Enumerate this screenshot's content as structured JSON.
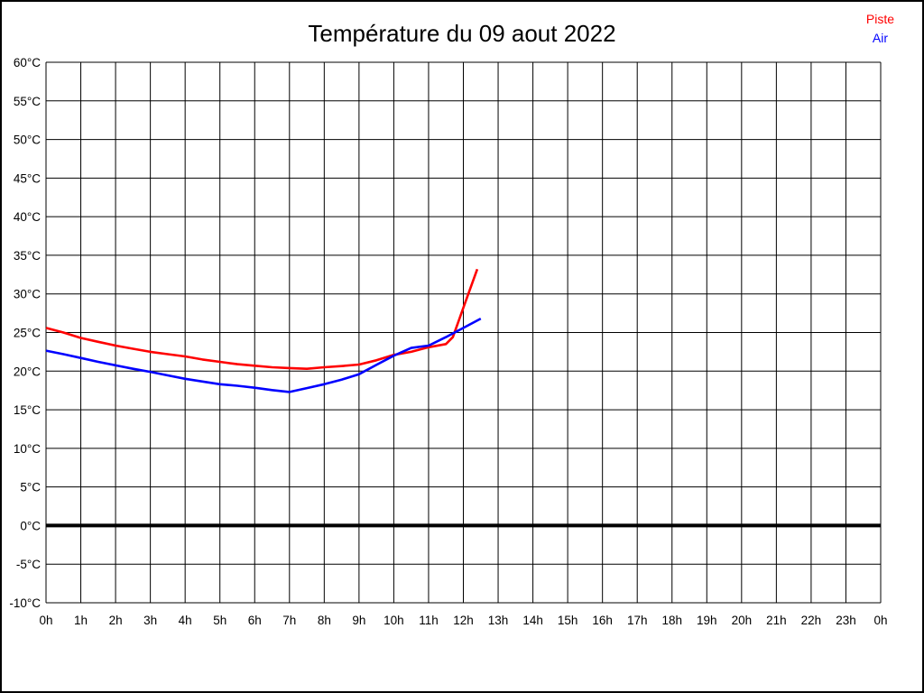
{
  "title": "Température du 09 aout 2022",
  "legend": [
    {
      "label": "Piste",
      "color": "#ff0000"
    },
    {
      "label": "Air",
      "color": "#0000ff"
    }
  ],
  "colors": {
    "background": "#ffffff",
    "grid": "#000000",
    "zero_line": "#000000",
    "border": "#000000",
    "piste": "#ff0000",
    "air": "#0000ff"
  },
  "chart_data": {
    "type": "line",
    "title": "Température du 09 aout 2022",
    "xlabel": "",
    "ylabel": "",
    "grid": true,
    "legend_position": "top-right",
    "xlim": [
      0,
      24
    ],
    "ylim": [
      -10,
      60
    ],
    "x_tick_values": [
      0,
      1,
      2,
      3,
      4,
      5,
      6,
      7,
      8,
      9,
      10,
      11,
      12,
      13,
      14,
      15,
      16,
      17,
      18,
      19,
      20,
      21,
      22,
      23,
      24
    ],
    "x_tick_labels": [
      "0h",
      "1h",
      "2h",
      "3h",
      "4h",
      "5h",
      "6h",
      "7h",
      "8h",
      "9h",
      "10h",
      "11h",
      "12h",
      "13h",
      "14h",
      "15h",
      "16h",
      "17h",
      "18h",
      "19h",
      "20h",
      "21h",
      "22h",
      "23h",
      "0h"
    ],
    "y_tick_values": [
      -10,
      -5,
      0,
      5,
      10,
      15,
      20,
      25,
      30,
      35,
      40,
      45,
      50,
      55,
      60
    ],
    "y_tick_labels": [
      "-10°C",
      "-5°C",
      "0°C",
      "5°C",
      "10°C",
      "15°C",
      "20°C",
      "25°C",
      "30°C",
      "35°C",
      "40°C",
      "45°C",
      "50°C",
      "55°C",
      "60°C"
    ],
    "zero_line_value": 0,
    "series": [
      {
        "name": "Piste",
        "color": "#ff0000",
        "x": [
          0,
          0.5,
          1,
          1.5,
          2,
          2.5,
          3,
          3.5,
          4,
          4.5,
          5,
          5.5,
          6,
          6.5,
          7,
          7.5,
          8,
          8.5,
          9,
          9.5,
          10,
          10.5,
          11,
          11.5,
          11.7,
          12,
          12.4
        ],
        "values": [
          25.6,
          25.0,
          24.3,
          23.8,
          23.3,
          22.9,
          22.5,
          22.2,
          21.9,
          21.5,
          21.2,
          20.9,
          20.7,
          20.5,
          20.4,
          20.3,
          20.5,
          20.65,
          20.85,
          21.4,
          22.1,
          22.5,
          23.1,
          23.5,
          24.4,
          28.2,
          33.2
        ]
      },
      {
        "name": "Air",
        "color": "#0000ff",
        "x": [
          0,
          0.5,
          1,
          1.5,
          2,
          2.5,
          3,
          3.5,
          4,
          4.5,
          5,
          5.5,
          6,
          6.5,
          7,
          7.5,
          8,
          8.5,
          9,
          9.5,
          10,
          10.5,
          11,
          11.5,
          12,
          12.5
        ],
        "values": [
          22.65,
          22.2,
          21.7,
          21.2,
          20.75,
          20.3,
          19.9,
          19.45,
          19.0,
          18.65,
          18.3,
          18.1,
          17.85,
          17.55,
          17.3,
          17.8,
          18.3,
          18.9,
          19.6,
          20.8,
          22.0,
          23.0,
          23.3,
          24.4,
          25.6,
          26.8
        ]
      }
    ]
  }
}
